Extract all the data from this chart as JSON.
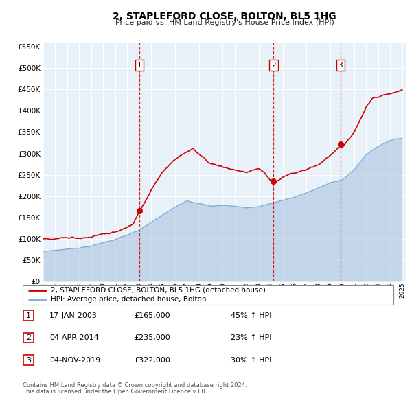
{
  "title": "2, STAPLEFORD CLOSE, BOLTON, BL5 1HG",
  "subtitle": "Price paid vs. HM Land Registry's House Price Index (HPI)",
  "legend_line1": "2, STAPLEFORD CLOSE, BOLTON, BL5 1HG (detached house)",
  "legend_line2": "HPI: Average price, detached house, Bolton",
  "footer1": "Contains HM Land Registry data © Crown copyright and database right 2024.",
  "footer2": "This data is licensed under the Open Government Licence v3.0.",
  "table": [
    {
      "num": "1",
      "date": "17-JAN-2003",
      "price": "£165,000",
      "hpi": "45% ↑ HPI"
    },
    {
      "num": "2",
      "date": "04-APR-2014",
      "price": "£235,000",
      "hpi": "23% ↑ HPI"
    },
    {
      "num": "3",
      "date": "04-NOV-2019",
      "price": "£322,000",
      "hpi": "30% ↑ HPI"
    }
  ],
  "sales": [
    {
      "date_num": 2003.04,
      "price": 165000,
      "label": "1"
    },
    {
      "date_num": 2014.25,
      "price": 235000,
      "label": "2"
    },
    {
      "date_num": 2019.84,
      "price": 322000,
      "label": "3"
    }
  ],
  "hpi_color": "#aac4e0",
  "hpi_line_color": "#7aafd4",
  "sales_color": "#cc0000",
  "vline_color": "#cc0000",
  "plot_bg": "#e8f0f8",
  "grid_color": "#ffffff",
  "ylim": [
    0,
    560000
  ],
  "yticks": [
    0,
    50000,
    100000,
    150000,
    200000,
    250000,
    300000,
    350000,
    400000,
    450000,
    500000,
    550000
  ],
  "xlim": [
    1995.0,
    2025.3
  ],
  "xticks": [
    1995,
    1996,
    1997,
    1998,
    1999,
    2000,
    2001,
    2002,
    2003,
    2004,
    2005,
    2006,
    2007,
    2008,
    2009,
    2010,
    2011,
    2012,
    2013,
    2014,
    2015,
    2016,
    2017,
    2018,
    2019,
    2020,
    2021,
    2022,
    2023,
    2024,
    2025
  ]
}
